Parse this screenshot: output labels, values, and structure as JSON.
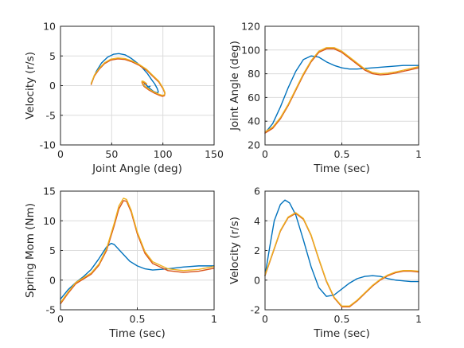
{
  "chart_data": [
    {
      "type": "line",
      "xlabel": "Joint Angle (deg)",
      "ylabel": "Velocity (r/s)",
      "xlim": [
        0,
        150
      ],
      "ylim": [
        -10,
        10
      ],
      "xticks": [
        "0",
        "50",
        "100",
        "150"
      ],
      "xtick_values": [
        0,
        50,
        100,
        150
      ],
      "yticks": [
        "-10",
        "-5",
        "0",
        "5",
        "10"
      ],
      "ytick_values": [
        -10,
        -5,
        0,
        5,
        10
      ],
      "grid": true,
      "series": [
        {
          "color": "#0072BD",
          "x": [
            30,
            35,
            40,
            46,
            52,
            57,
            63,
            69,
            75,
            80,
            85,
            89,
            92,
            94.5,
            95.5,
            95,
            94,
            91,
            88,
            85,
            82.5,
            81,
            81.5,
            83.5,
            86,
            87.5
          ],
          "y": [
            0.4,
            2.4,
            3.8,
            4.8,
            5.3,
            5.4,
            5.2,
            4.6,
            3.8,
            3.0,
            2.0,
            1.0,
            0.3,
            -0.5,
            -1.0,
            -1.2,
            -1.2,
            -1.0,
            -0.6,
            -0.1,
            0.3,
            0.2,
            -0.1,
            -0.3,
            -0.2,
            -0.1
          ]
        },
        {
          "color": "#D95319",
          "x": [
            30,
            33,
            38,
            43,
            49,
            56,
            63,
            70,
            77,
            84,
            90,
            96,
            100,
            102,
            101.5,
            99.5,
            96,
            91,
            86,
            82,
            80,
            79.5,
            80.5,
            82.5,
            84
          ],
          "y": [
            0.2,
            1.6,
            2.8,
            3.7,
            4.3,
            4.5,
            4.4,
            4.0,
            3.4,
            2.6,
            1.6,
            0.6,
            -0.5,
            -1.3,
            -1.7,
            -1.8,
            -1.6,
            -1.2,
            -0.7,
            -0.2,
            0.3,
            0.6,
            0.6,
            0.4,
            0.2
          ]
        },
        {
          "color": "#EDB120",
          "x": [
            30,
            33,
            38,
            43,
            49,
            56,
            63,
            70,
            77,
            84,
            90,
            96,
            100,
            102,
            101.5,
            99.5,
            96,
            91,
            86,
            82,
            80,
            79.5,
            80.5,
            82.5,
            84
          ],
          "y": [
            0.35,
            1.75,
            2.95,
            3.85,
            4.45,
            4.65,
            4.55,
            4.15,
            3.55,
            2.75,
            1.75,
            0.75,
            -0.35,
            -1.15,
            -1.55,
            -1.65,
            -1.45,
            -1.05,
            -0.55,
            -0.05,
            0.45,
            0.75,
            0.75,
            0.55,
            0.35
          ]
        }
      ]
    },
    {
      "type": "line",
      "xlabel": "Time (sec)",
      "ylabel": "Joint Angle (deg)",
      "xlim": [
        0,
        1
      ],
      "ylim": [
        20,
        120
      ],
      "xticks": [
        "0",
        "0.5",
        "1"
      ],
      "xtick_values": [
        0,
        0.5,
        1
      ],
      "yticks": [
        "20",
        "40",
        "60",
        "80",
        "100",
        "120"
      ],
      "ytick_values": [
        20,
        40,
        60,
        80,
        100,
        120
      ],
      "grid": true,
      "series": [
        {
          "color": "#0072BD",
          "x": [
            0,
            0.05,
            0.1,
            0.15,
            0.2,
            0.25,
            0.3,
            0.35,
            0.4,
            0.45,
            0.5,
            0.55,
            0.6,
            0.65,
            0.7,
            0.75,
            0.8,
            0.85,
            0.9,
            0.95,
            1.0
          ],
          "y": [
            30,
            38,
            52,
            68,
            82,
            92,
            95,
            94,
            90,
            87,
            85,
            84,
            84,
            84.5,
            85,
            85.5,
            86,
            86.5,
            87,
            87,
            87
          ]
        },
        {
          "color": "#D95319",
          "x": [
            0,
            0.05,
            0.1,
            0.15,
            0.2,
            0.25,
            0.3,
            0.35,
            0.4,
            0.45,
            0.5,
            0.55,
            0.6,
            0.65,
            0.7,
            0.75,
            0.8,
            0.85,
            0.9,
            0.95,
            1.0
          ],
          "y": [
            30,
            34,
            42,
            53,
            66,
            79,
            90,
            98,
            101,
            101,
            98,
            93,
            88,
            83,
            80,
            79,
            79.5,
            80.5,
            82,
            83.5,
            85
          ]
        },
        {
          "color": "#EDB120",
          "x": [
            0,
            0.05,
            0.1,
            0.15,
            0.2,
            0.25,
            0.3,
            0.35,
            0.4,
            0.45,
            0.5,
            0.55,
            0.6,
            0.65,
            0.7,
            0.75,
            0.8,
            0.85,
            0.9,
            0.95,
            1.0
          ],
          "y": [
            31,
            35,
            43,
            54,
            67,
            80,
            91,
            99,
            102,
            102,
            99,
            94,
            89,
            84,
            81,
            80,
            80.5,
            81.5,
            83,
            84.5,
            86
          ]
        }
      ]
    },
    {
      "type": "line",
      "xlabel": "Time (sec)",
      "ylabel": "Spring Mom (Nm)",
      "xlim": [
        0,
        1
      ],
      "ylim": [
        -5,
        15
      ],
      "xticks": [
        "0",
        "0.5",
        "1"
      ],
      "xtick_values": [
        0,
        0.5,
        1
      ],
      "yticks": [
        "-5",
        "0",
        "5",
        "10",
        "15"
      ],
      "ytick_values": [
        -5,
        0,
        5,
        10,
        15
      ],
      "grid": true,
      "series": [
        {
          "color": "#0072BD",
          "x": [
            0,
            0.05,
            0.1,
            0.15,
            0.2,
            0.25,
            0.3,
            0.33,
            0.35,
            0.4,
            0.45,
            0.5,
            0.55,
            0.6,
            0.7,
            0.8,
            0.9,
            1.0
          ],
          "y": [
            -3.2,
            -1.6,
            -0.4,
            0.6,
            1.8,
            3.6,
            5.6,
            6.2,
            6.0,
            4.6,
            3.2,
            2.4,
            1.9,
            1.7,
            1.9,
            2.2,
            2.4,
            2.4
          ]
        },
        {
          "color": "#D95319",
          "x": [
            0,
            0.05,
            0.1,
            0.15,
            0.2,
            0.25,
            0.3,
            0.35,
            0.38,
            0.41,
            0.43,
            0.46,
            0.5,
            0.55,
            0.6,
            0.7,
            0.8,
            0.9,
            1.0
          ],
          "y": [
            -4.0,
            -2.2,
            -0.6,
            0.2,
            1.0,
            2.5,
            5.0,
            9.2,
            12.0,
            13.4,
            13.3,
            11.5,
            7.8,
            4.5,
            2.8,
            1.6,
            1.3,
            1.5,
            2.0
          ]
        },
        {
          "color": "#EDB120",
          "x": [
            0,
            0.05,
            0.1,
            0.15,
            0.2,
            0.25,
            0.3,
            0.35,
            0.38,
            0.41,
            0.43,
            0.46,
            0.5,
            0.55,
            0.6,
            0.7,
            0.8,
            0.9,
            1.0
          ],
          "y": [
            -3.8,
            -2.0,
            -0.4,
            0.4,
            1.2,
            2.7,
            5.3,
            9.6,
            12.5,
            13.8,
            13.6,
            11.8,
            8.1,
            4.8,
            3.1,
            1.9,
            1.6,
            1.8,
            2.3
          ]
        }
      ]
    },
    {
      "type": "line",
      "xlabel": "Time (sec)",
      "ylabel": "Velocity (r/s)",
      "xlim": [
        0,
        1
      ],
      "ylim": [
        -2,
        6
      ],
      "xticks": [
        "0",
        "0.5",
        "1"
      ],
      "xtick_values": [
        0,
        0.5,
        1
      ],
      "yticks": [
        "-2",
        "0",
        "2",
        "4",
        "6"
      ],
      "ytick_values": [
        -2,
        0,
        2,
        4,
        6
      ],
      "grid": true,
      "series": [
        {
          "color": "#0072BD",
          "x": [
            0,
            0.03,
            0.06,
            0.1,
            0.13,
            0.16,
            0.2,
            0.25,
            0.3,
            0.35,
            0.4,
            0.45,
            0.5,
            0.55,
            0.6,
            0.65,
            0.7,
            0.75,
            0.8,
            0.85,
            0.9,
            0.95,
            1.0
          ],
          "y": [
            0.3,
            2.2,
            4.0,
            5.1,
            5.4,
            5.2,
            4.4,
            2.7,
            0.9,
            -0.5,
            -1.1,
            -1.0,
            -0.6,
            -0.2,
            0.1,
            0.25,
            0.3,
            0.25,
            0.1,
            0.0,
            -0.05,
            -0.1,
            -0.1
          ]
        },
        {
          "color": "#D95319",
          "x": [
            0,
            0.05,
            0.1,
            0.15,
            0.2,
            0.25,
            0.3,
            0.35,
            0.4,
            0.45,
            0.5,
            0.55,
            0.6,
            0.65,
            0.7,
            0.75,
            0.8,
            0.85,
            0.9,
            0.95,
            1.0
          ],
          "y": [
            0.3,
            1.8,
            3.3,
            4.2,
            4.5,
            4.1,
            3.0,
            1.4,
            -0.1,
            -1.2,
            -1.8,
            -1.8,
            -1.4,
            -0.9,
            -0.4,
            0.0,
            0.3,
            0.5,
            0.6,
            0.6,
            0.55
          ]
        },
        {
          "color": "#EDB120",
          "x": [
            0,
            0.05,
            0.1,
            0.15,
            0.2,
            0.25,
            0.3,
            0.35,
            0.4,
            0.45,
            0.5,
            0.55,
            0.6,
            0.65,
            0.7,
            0.75,
            0.8,
            0.85,
            0.9,
            0.95,
            1.0
          ],
          "y": [
            0.35,
            1.85,
            3.35,
            4.25,
            4.55,
            4.15,
            3.05,
            1.45,
            -0.05,
            -1.15,
            -1.75,
            -1.75,
            -1.35,
            -0.85,
            -0.35,
            0.05,
            0.35,
            0.55,
            0.65,
            0.65,
            0.6
          ]
        }
      ]
    }
  ]
}
